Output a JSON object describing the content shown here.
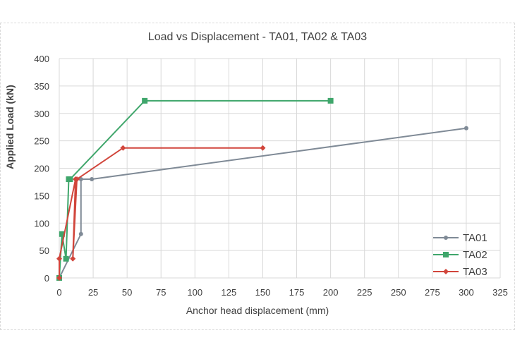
{
  "chart_data": {
    "type": "scatter",
    "title": "Load vs Displacement - TA01, TA02 & TA03",
    "xlabel": "Anchor head displacement (mm)",
    "ylabel": "Applied Load (kN)",
    "xlim": [
      0,
      325
    ],
    "ylim": [
      0,
      400
    ],
    "xticks": [
      0,
      25,
      50,
      75,
      100,
      125,
      150,
      175,
      200,
      225,
      250,
      275,
      300,
      325
    ],
    "yticks": [
      0,
      50,
      100,
      150,
      200,
      250,
      300,
      350,
      400
    ],
    "grid": true,
    "legend_position": "right-bottom",
    "series": [
      {
        "name": "TA01",
        "color": "#7f8a96",
        "marker": "circle",
        "x": [
          0,
          16,
          16,
          24,
          300
        ],
        "y": [
          0,
          80,
          180,
          180,
          273
        ]
      },
      {
        "name": "TA02",
        "color": "#3fa66b",
        "marker": "square",
        "x": [
          0,
          2,
          5,
          7,
          8,
          63,
          200
        ],
        "y": [
          0,
          80,
          35,
          180,
          180,
          323,
          323
        ]
      },
      {
        "name": "TA03",
        "color": "#d1453b",
        "marker": "diamond",
        "x": [
          0,
          0,
          12,
          10,
          13,
          47,
          150
        ],
        "y": [
          0,
          35,
          180,
          35,
          180,
          237,
          237
        ]
      }
    ]
  }
}
